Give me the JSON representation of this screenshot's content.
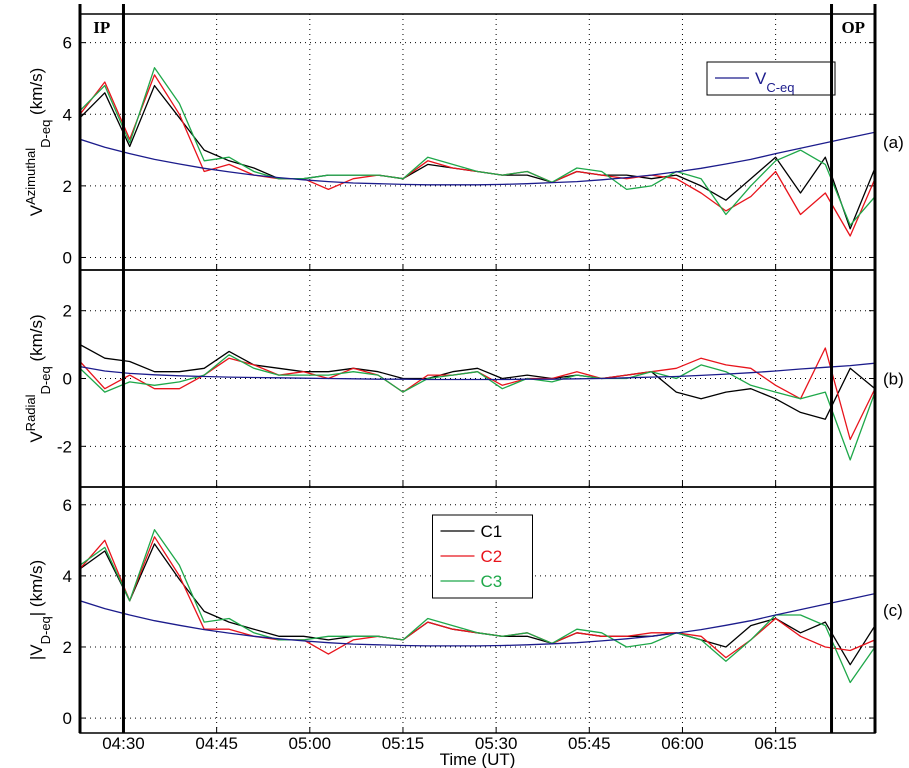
{
  "chart_data": [
    {
      "type": "line",
      "panel_label": "(a)",
      "ylabel": [
        {
          "text": "V",
          "shift": "normal"
        },
        {
          "text": "Azimuthal",
          "shift": "super"
        },
        {
          "text": "D-eq",
          "shift": "sub"
        },
        {
          "text": " (km/s)",
          "shift": "normal"
        }
      ],
      "markers": [
        {
          "label": "IP",
          "x": "04:30"
        },
        {
          "label": "OP",
          "x": "06:24"
        }
      ],
      "x": [
        "04:23",
        "04:27",
        "04:31",
        "04:35",
        "04:39",
        "04:43",
        "04:47",
        "04:51",
        "04:55",
        "04:59",
        "05:03",
        "05:07",
        "05:11",
        "05:15",
        "05:19",
        "05:23",
        "05:27",
        "05:31",
        "05:35",
        "05:39",
        "05:43",
        "05:47",
        "05:51",
        "05:55",
        "05:59",
        "06:03",
        "06:07",
        "06:11",
        "06:15",
        "06:19",
        "06:23",
        "06:27",
        "06:31"
      ],
      "xlim": [
        "04:23",
        "06:31"
      ],
      "xticks": [
        "04:30",
        "04:45",
        "05:00",
        "05:15",
        "05:30",
        "05:45",
        "06:00",
        "06:15"
      ],
      "ylim": [
        -0.35,
        6.8
      ],
      "yticks": [
        0,
        2,
        4,
        6
      ],
      "grid": true,
      "legend": "upper right",
      "series": [
        {
          "color": "#000000",
          "values": [
            3.9,
            4.6,
            3.1,
            4.8,
            3.9,
            3.0,
            2.7,
            2.5,
            2.2,
            2.2,
            2.3,
            2.3,
            2.3,
            2.2,
            2.6,
            2.5,
            2.4,
            2.3,
            2.3,
            2.1,
            2.4,
            2.3,
            2.3,
            2.2,
            2.3,
            2.0,
            1.6,
            2.2,
            2.8,
            1.8,
            2.8,
            0.8,
            2.5
          ]
        },
        {
          "color": "#e8141c",
          "values": [
            4.0,
            4.9,
            3.3,
            5.1,
            4.0,
            2.4,
            2.6,
            2.3,
            2.2,
            2.2,
            1.9,
            2.2,
            2.3,
            2.2,
            2.7,
            2.5,
            2.4,
            2.3,
            2.4,
            2.1,
            2.4,
            2.3,
            2.2,
            2.3,
            2.2,
            1.8,
            1.3,
            1.7,
            2.4,
            1.2,
            1.8,
            0.6,
            2.2
          ]
        },
        {
          "color": "#1fa84a",
          "values": [
            4.1,
            4.8,
            3.2,
            5.3,
            4.3,
            2.7,
            2.8,
            2.4,
            2.2,
            2.2,
            2.3,
            2.3,
            2.3,
            2.2,
            2.8,
            2.6,
            2.4,
            2.3,
            2.4,
            2.1,
            2.5,
            2.4,
            1.9,
            2.0,
            2.4,
            2.2,
            1.2,
            2.0,
            2.7,
            3.0,
            2.6,
            0.9,
            1.7
          ]
        },
        {
          "name": "V",
          "name_sub": "C-eq",
          "color": "#1c1c8c",
          "values": [
            3.3,
            3.08,
            2.9,
            2.74,
            2.61,
            2.49,
            2.39,
            2.3,
            2.23,
            2.17,
            2.12,
            2.08,
            2.06,
            2.04,
            2.03,
            2.03,
            2.03,
            2.04,
            2.06,
            2.09,
            2.12,
            2.17,
            2.23,
            2.3,
            2.39,
            2.49,
            2.61,
            2.74,
            2.9,
            3.05,
            3.2,
            3.35,
            3.5
          ]
        }
      ]
    },
    {
      "type": "line",
      "panel_label": "(b)",
      "ylabel": [
        {
          "text": "V",
          "shift": "normal"
        },
        {
          "text": "Radial",
          "shift": "super"
        },
        {
          "text": "D-eq",
          "shift": "sub"
        },
        {
          "text": " (km/s)",
          "shift": "normal"
        }
      ],
      "x": [
        "04:23",
        "04:27",
        "04:31",
        "04:35",
        "04:39",
        "04:43",
        "04:47",
        "04:51",
        "04:55",
        "04:59",
        "05:03",
        "05:07",
        "05:11",
        "05:15",
        "05:19",
        "05:23",
        "05:27",
        "05:31",
        "05:35",
        "05:39",
        "05:43",
        "05:47",
        "05:51",
        "05:55",
        "05:59",
        "06:03",
        "06:07",
        "06:11",
        "06:15",
        "06:19",
        "06:23",
        "06:27",
        "06:31"
      ],
      "xlim": [
        "04:23",
        "06:31"
      ],
      "xticks": [
        "04:30",
        "04:45",
        "05:00",
        "05:15",
        "05:30",
        "05:45",
        "06:00",
        "06:15"
      ],
      "ylim": [
        -3.2,
        3.2
      ],
      "yticks": [
        -2,
        0,
        2
      ],
      "grid": true,
      "series": [
        {
          "color": "#000000",
          "values": [
            1.0,
            0.6,
            0.5,
            0.2,
            0.2,
            0.3,
            0.8,
            0.4,
            0.3,
            0.2,
            0.2,
            0.3,
            0.2,
            0.0,
            0.0,
            0.2,
            0.3,
            0.0,
            0.1,
            0.0,
            0.1,
            0.0,
            0.1,
            0.2,
            -0.4,
            -0.6,
            -0.4,
            -0.3,
            -0.6,
            -1.0,
            -1.2,
            0.3,
            -0.3
          ]
        },
        {
          "color": "#e8141c",
          "values": [
            0.5,
            -0.3,
            0.1,
            -0.3,
            -0.3,
            0.1,
            0.6,
            0.4,
            0.1,
            0.2,
            0.0,
            0.3,
            0.1,
            -0.4,
            0.1,
            0.1,
            0.2,
            -0.2,
            0.0,
            0.0,
            0.2,
            0.0,
            0.1,
            0.2,
            0.3,
            0.6,
            0.4,
            0.3,
            -0.2,
            -0.6,
            0.9,
            -1.8,
            -0.3
          ]
        },
        {
          "color": "#1fa84a",
          "values": [
            0.3,
            -0.4,
            -0.1,
            -0.2,
            -0.1,
            0.1,
            0.7,
            0.3,
            0.1,
            0.1,
            0.1,
            0.2,
            0.1,
            -0.4,
            0.0,
            0.1,
            0.2,
            -0.3,
            0.0,
            -0.1,
            0.1,
            0.0,
            0.0,
            0.2,
            0.0,
            0.4,
            0.2,
            -0.2,
            -0.4,
            -0.6,
            -0.4,
            -2.4,
            -0.4
          ]
        },
        {
          "color": "#1c1c8c",
          "values": [
            0.35,
            0.22,
            0.15,
            0.11,
            0.08,
            0.06,
            0.04,
            0.03,
            0.02,
            0.01,
            0.0,
            -0.01,
            -0.02,
            -0.02,
            -0.03,
            -0.03,
            -0.03,
            -0.03,
            -0.02,
            -0.02,
            -0.01,
            0.0,
            0.02,
            0.04,
            0.06,
            0.09,
            0.13,
            0.17,
            0.22,
            0.28,
            0.33,
            0.38,
            0.45
          ]
        }
      ]
    },
    {
      "type": "line",
      "panel_label": "(c)",
      "xlabel": "Time (UT)",
      "ylabel": [
        {
          "text": "|V",
          "shift": "normal"
        },
        {
          "text": "D-eq",
          "shift": "sub"
        },
        {
          "text": "| (km/s)",
          "shift": "normal"
        }
      ],
      "x": [
        "04:23",
        "04:27",
        "04:31",
        "04:35",
        "04:39",
        "04:43",
        "04:47",
        "04:51",
        "04:55",
        "04:59",
        "05:03",
        "05:07",
        "05:11",
        "05:15",
        "05:19",
        "05:23",
        "05:27",
        "05:31",
        "05:35",
        "05:39",
        "05:43",
        "05:47",
        "05:51",
        "05:55",
        "05:59",
        "06:03",
        "06:07",
        "06:11",
        "06:15",
        "06:19",
        "06:23",
        "06:27",
        "06:31"
      ],
      "xlim": [
        "04:23",
        "06:31"
      ],
      "xticks": [
        "04:30",
        "04:45",
        "05:00",
        "05:15",
        "05:30",
        "05:45",
        "06:00",
        "06:15"
      ],
      "ylim": [
        -0.42,
        6.5
      ],
      "yticks": [
        0,
        2,
        4,
        6
      ],
      "grid": true,
      "legend": "upper center",
      "series": [
        {
          "name": "C1",
          "color": "#000000",
          "values": [
            4.2,
            4.7,
            3.3,
            4.9,
            3.9,
            3.0,
            2.7,
            2.5,
            2.3,
            2.3,
            2.2,
            2.3,
            2.3,
            2.2,
            2.7,
            2.5,
            2.4,
            2.3,
            2.3,
            2.1,
            2.4,
            2.3,
            2.3,
            2.3,
            2.4,
            2.2,
            2.0,
            2.6,
            2.8,
            2.4,
            2.7,
            1.5,
            2.6
          ]
        },
        {
          "name": "C2",
          "color": "#e8141c",
          "values": [
            4.2,
            5.0,
            3.3,
            5.1,
            4.0,
            2.5,
            2.5,
            2.3,
            2.2,
            2.2,
            1.8,
            2.2,
            2.3,
            2.2,
            2.7,
            2.5,
            2.4,
            2.3,
            2.4,
            2.1,
            2.4,
            2.3,
            2.3,
            2.4,
            2.4,
            2.3,
            1.7,
            2.2,
            2.8,
            2.3,
            2.0,
            1.9,
            2.2
          ]
        },
        {
          "name": "C3",
          "color": "#1fa84a",
          "values": [
            4.3,
            4.8,
            3.3,
            5.3,
            4.3,
            2.7,
            2.8,
            2.4,
            2.2,
            2.2,
            2.3,
            2.3,
            2.3,
            2.2,
            2.8,
            2.6,
            2.4,
            2.3,
            2.4,
            2.1,
            2.5,
            2.4,
            2.0,
            2.1,
            2.4,
            2.2,
            1.6,
            2.2,
            2.9,
            2.9,
            2.6,
            1.0,
            2.0
          ]
        },
        {
          "color": "#1c1c8c",
          "values": [
            3.3,
            3.08,
            2.9,
            2.74,
            2.61,
            2.49,
            2.39,
            2.3,
            2.23,
            2.17,
            2.12,
            2.08,
            2.06,
            2.04,
            2.03,
            2.03,
            2.03,
            2.04,
            2.06,
            2.09,
            2.12,
            2.17,
            2.23,
            2.3,
            2.39,
            2.49,
            2.61,
            2.74,
            2.9,
            3.05,
            3.2,
            3.35,
            3.5
          ]
        }
      ]
    }
  ]
}
